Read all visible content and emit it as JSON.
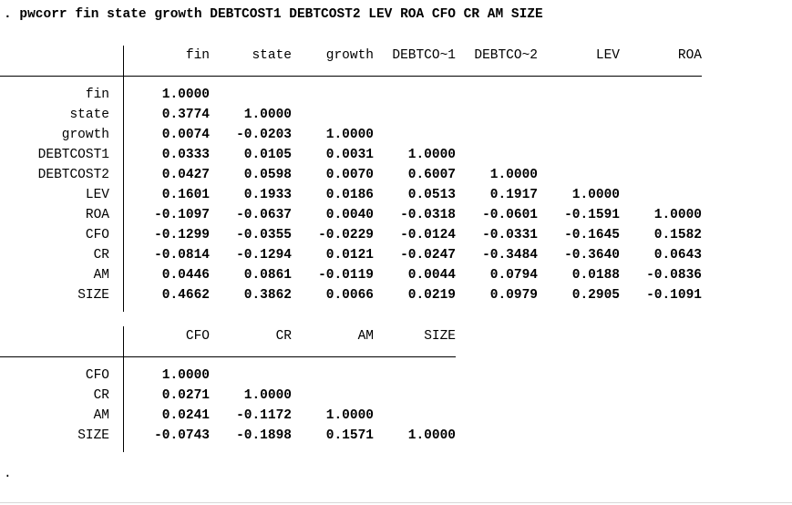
{
  "command": ". pwcorr fin state growth DEBTCOST1 DEBTCOST2 LEV ROA CFO CR AM SIZE",
  "tables": [
    {
      "headers": [
        "fin",
        "state",
        "growth",
        "DEBTCO~1",
        "DEBTCO~2",
        "LEV",
        "ROA"
      ],
      "rows": [
        {
          "label": "fin",
          "values": [
            "1.0000"
          ]
        },
        {
          "label": "state",
          "values": [
            "0.3774",
            "1.0000"
          ]
        },
        {
          "label": "growth",
          "values": [
            "0.0074",
            "-0.0203",
            "1.0000"
          ]
        },
        {
          "label": "DEBTCOST1",
          "values": [
            "0.0333",
            "0.0105",
            "0.0031",
            "1.0000"
          ]
        },
        {
          "label": "DEBTCOST2",
          "values": [
            "0.0427",
            "0.0598",
            "0.0070",
            "0.6007",
            "1.0000"
          ]
        },
        {
          "label": "LEV",
          "values": [
            "0.1601",
            "0.1933",
            "0.0186",
            "0.0513",
            "0.1917",
            "1.0000"
          ]
        },
        {
          "label": "ROA",
          "values": [
            "-0.1097",
            "-0.0637",
            "0.0040",
            "-0.0318",
            "-0.0601",
            "-0.1591",
            "1.0000"
          ]
        },
        {
          "label": "CFO",
          "values": [
            "-0.1299",
            "-0.0355",
            "-0.0229",
            "-0.0124",
            "-0.0331",
            "-0.1645",
            "0.1582"
          ]
        },
        {
          "label": "CR",
          "values": [
            "-0.0814",
            "-0.1294",
            "0.0121",
            "-0.0247",
            "-0.3484",
            "-0.3640",
            "0.0643"
          ]
        },
        {
          "label": "AM",
          "values": [
            "0.0446",
            "0.0861",
            "-0.0119",
            "0.0044",
            "0.0794",
            "0.0188",
            "-0.0836"
          ]
        },
        {
          "label": "SIZE",
          "values": [
            "0.4662",
            "0.3862",
            "0.0066",
            "0.0219",
            "0.0979",
            "0.2905",
            "-0.1091"
          ]
        }
      ]
    },
    {
      "headers": [
        "CFO",
        "CR",
        "AM",
        "SIZE"
      ],
      "rows": [
        {
          "label": "CFO",
          "values": [
            "1.0000"
          ]
        },
        {
          "label": "CR",
          "values": [
            "0.0271",
            "1.0000"
          ]
        },
        {
          "label": "AM",
          "values": [
            "0.0241",
            "-0.1172",
            "1.0000"
          ]
        },
        {
          "label": "SIZE",
          "values": [
            "-0.0743",
            "-0.1898",
            "0.1571",
            "1.0000"
          ]
        }
      ]
    }
  ],
  "prompt": "."
}
